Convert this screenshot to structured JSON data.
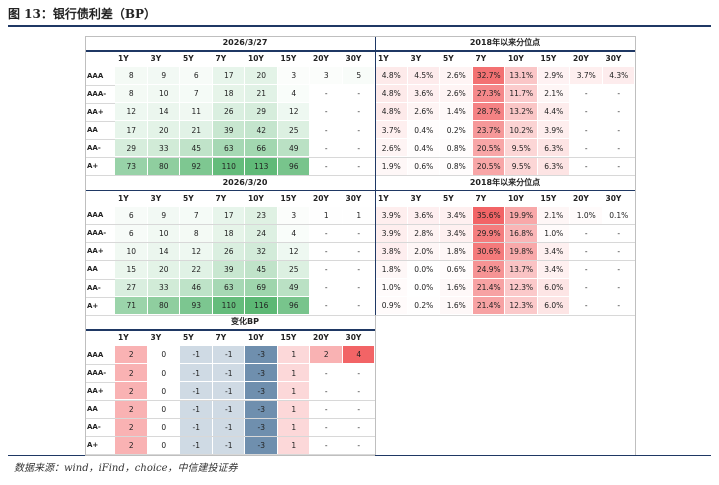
{
  "title": "图 13：银行债利差（BP）",
  "sections": [
    {
      "left_header": "2026/3/27",
      "right_header": "2018年以来分位点",
      "columns": [
        "1Y",
        "3Y",
        "5Y",
        "7Y",
        "10Y",
        "15Y",
        "20Y",
        "30Y"
      ],
      "right_columns": [
        "1Y",
        "3Y",
        "5Y",
        "7Y",
        "10Y",
        "15Y",
        "20Y",
        "30Y"
      ],
      "rows": [
        {
          "label": "AAA",
          "spreads": [
            "8",
            "9",
            "6",
            "17",
            "20",
            "3",
            "3",
            "5"
          ],
          "percentiles": [
            "4.8%",
            "4.5%",
            "2.6%",
            "32.7%",
            "13.1%",
            "2.9%",
            "3.7%",
            "4.3%"
          ]
        },
        {
          "label": "AAA-",
          "spreads": [
            "8",
            "10",
            "7",
            "18",
            "21",
            "4",
            "-",
            "-"
          ],
          "percentiles": [
            "4.8%",
            "3.6%",
            "2.6%",
            "27.3%",
            "11.7%",
            "2.1%",
            "-",
            "-"
          ]
        },
        {
          "label": "AA+",
          "spreads": [
            "12",
            "14",
            "11",
            "26",
            "29",
            "12",
            "-",
            "-"
          ],
          "percentiles": [
            "4.8%",
            "2.6%",
            "1.4%",
            "28.7%",
            "13.2%",
            "4.4%",
            "-",
            "-"
          ]
        },
        {
          "label": "AA",
          "spreads": [
            "17",
            "20",
            "21",
            "39",
            "42",
            "25",
            "-",
            "-"
          ],
          "percentiles": [
            "3.7%",
            "0.4%",
            "0.2%",
            "23.7%",
            "10.2%",
            "3.9%",
            "-",
            "-"
          ]
        },
        {
          "label": "AA-",
          "spreads": [
            "29",
            "33",
            "45",
            "63",
            "66",
            "49",
            "-",
            "-"
          ],
          "percentiles": [
            "2.6%",
            "0.4%",
            "0.8%",
            "20.5%",
            "9.5%",
            "6.3%",
            "-",
            "-"
          ]
        },
        {
          "label": "A+",
          "spreads": [
            "73",
            "80",
            "92",
            "110",
            "113",
            "96",
            "-",
            "-"
          ],
          "percentiles": [
            "1.9%",
            "0.6%",
            "0.8%",
            "20.5%",
            "9.5%",
            "6.3%",
            "-",
            "-"
          ]
        }
      ]
    },
    {
      "left_header": "2026/3/20",
      "right_header": "2018年以来分位点",
      "columns": [
        "1Y",
        "3Y",
        "5Y",
        "7Y",
        "10Y",
        "15Y",
        "20Y",
        "30Y"
      ],
      "right_columns": [
        "1Y",
        "3Y",
        "5Y",
        "7Y",
        "10Y",
        "15Y",
        "20Y",
        "30Y"
      ],
      "rows": [
        {
          "label": "AAA",
          "spreads": [
            "6",
            "9",
            "7",
            "17",
            "23",
            "3",
            "1",
            "1"
          ],
          "percentiles": [
            "3.9%",
            "3.6%",
            "3.4%",
            "35.6%",
            "19.9%",
            "2.1%",
            "1.0%",
            "0.1%"
          ]
        },
        {
          "label": "AAA-",
          "spreads": [
            "6",
            "10",
            "8",
            "18",
            "24",
            "4",
            "-",
            "-"
          ],
          "percentiles": [
            "3.9%",
            "2.8%",
            "3.4%",
            "29.9%",
            "16.8%",
            "1.0%",
            "-",
            "-"
          ]
        },
        {
          "label": "AA+",
          "spreads": [
            "10",
            "14",
            "12",
            "26",
            "32",
            "12",
            "-",
            "-"
          ],
          "percentiles": [
            "3.8%",
            "2.0%",
            "1.8%",
            "30.6%",
            "19.8%",
            "3.4%",
            "-",
            "-"
          ]
        },
        {
          "label": "AA",
          "spreads": [
            "15",
            "20",
            "22",
            "39",
            "45",
            "25",
            "-",
            "-"
          ],
          "percentiles": [
            "1.8%",
            "0.0%",
            "0.6%",
            "24.9%",
            "13.7%",
            "3.4%",
            "-",
            "-"
          ]
        },
        {
          "label": "AA-",
          "spreads": [
            "27",
            "33",
            "46",
            "63",
            "69",
            "49",
            "-",
            "-"
          ],
          "percentiles": [
            "1.0%",
            "0.0%",
            "1.6%",
            "21.4%",
            "12.3%",
            "6.0%",
            "-",
            "-"
          ]
        },
        {
          "label": "A+",
          "spreads": [
            "71",
            "80",
            "93",
            "110",
            "116",
            "96",
            "-",
            "-"
          ],
          "percentiles": [
            "0.9%",
            "0.2%",
            "1.6%",
            "21.4%",
            "12.3%",
            "6.0%",
            "-",
            "-"
          ]
        }
      ]
    }
  ],
  "change": {
    "header": "变化BP",
    "columns": [
      "1Y",
      "3Y",
      "5Y",
      "7Y",
      "10Y",
      "15Y",
      "20Y",
      "30Y"
    ],
    "rows": [
      {
        "label": "AAA",
        "values": [
          "2",
          "0",
          "-1",
          "-1",
          "-3",
          "1",
          "2",
          "4"
        ]
      },
      {
        "label": "AAA-",
        "values": [
          "2",
          "0",
          "-1",
          "-1",
          "-3",
          "1",
          "-",
          "-"
        ]
      },
      {
        "label": "AA+",
        "values": [
          "2",
          "0",
          "-1",
          "-1",
          "-3",
          "1",
          "-",
          "-"
        ]
      },
      {
        "label": "AA",
        "values": [
          "2",
          "0",
          "-1",
          "-1",
          "-3",
          "1",
          "-",
          "-"
        ]
      },
      {
        "label": "AA-",
        "values": [
          "2",
          "0",
          "-1",
          "-1",
          "-3",
          "1",
          "-",
          "-"
        ]
      },
      {
        "label": "A+",
        "values": [
          "2",
          "0",
          "-1",
          "-1",
          "-3",
          "1",
          "-",
          "-"
        ]
      }
    ]
  },
  "source": "数据来源：wind，iFind，choice，中信建投证券"
}
